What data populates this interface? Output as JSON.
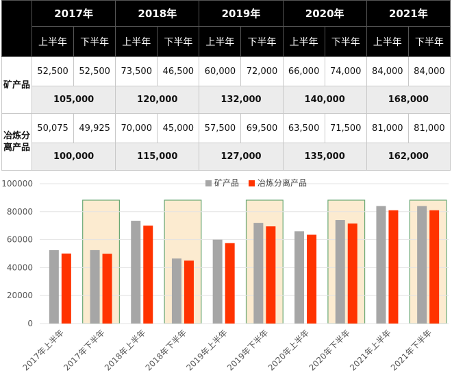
{
  "table": {
    "years": [
      "2017年",
      "2018年",
      "2019年",
      "2020年",
      "2021年"
    ],
    "halves": [
      "上半年",
      "下半年",
      "上半年",
      "下半年",
      "上半年",
      "下半年",
      "上半年",
      "下半年",
      "上半年",
      "下半年"
    ],
    "rows": [
      {
        "category": "矿产品",
        "values": [
          "52,500",
          "52,500",
          "73,500",
          "46,500",
          "60,000",
          "72,000",
          "66,000",
          "74,000",
          "84,000",
          "84,000"
        ],
        "totals": [
          "105,000",
          "120,000",
          "132,000",
          "140,000",
          "168,000"
        ]
      },
      {
        "category": "冶炼分离产品",
        "values": [
          "50,075",
          "49,925",
          "70,000",
          "45,000",
          "57,500",
          "69,500",
          "63,500",
          "71,500",
          "81,000",
          "81,000"
        ],
        "totals": [
          "100,000",
          "115,000",
          "127,000",
          "135,000",
          "162,000"
        ]
      }
    ]
  },
  "chart_data": {
    "type": "bar",
    "categories": [
      "2017年上半年",
      "2017年下半年",
      "2018年上半年",
      "2018年下半年",
      "2019年上半年",
      "2019年下半年",
      "2020年上半年",
      "2020年下半年",
      "2021年上半年",
      "2021年下半年"
    ],
    "series": [
      {
        "name": "矿产品",
        "values": [
          52500,
          52500,
          73500,
          46500,
          60000,
          72000,
          66000,
          74000,
          84000,
          84000
        ],
        "color": "#a6a6a6"
      },
      {
        "name": "冶炼分离产品",
        "values": [
          50075,
          49925,
          70000,
          45000,
          57500,
          69500,
          63500,
          71500,
          81000,
          81000
        ],
        "color": "#ff3300"
      }
    ],
    "ylim": [
      0,
      100000
    ],
    "yticks": [
      0,
      20000,
      40000,
      60000,
      80000,
      100000
    ],
    "highlighted_categories": [
      "2017年下半年",
      "2018年下半年",
      "2019年下半年",
      "2020年下半年",
      "2021年下半年"
    ],
    "highlight_color": "#fcebd0",
    "highlight_border": "#6aa874",
    "legend_position": "top",
    "grid": true,
    "xlabel": "",
    "ylabel": ""
  }
}
